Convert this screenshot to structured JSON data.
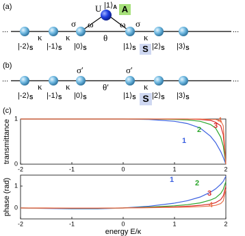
{
  "panel_a": {
    "label": "(a)",
    "ellipsis": [
      "...",
      "..."
    ],
    "sites": [
      {
        "ket": "|-2⟩",
        "sub": "S"
      },
      {
        "ket": "|-1⟩",
        "sub": "S"
      },
      {
        "ket": "|0⟩",
        "sub": "S"
      },
      {
        "ket": "|1⟩",
        "sub": "S"
      },
      {
        "ket": "|2⟩",
        "sub": "S"
      },
      {
        "ket": "|3⟩",
        "sub": "S"
      }
    ],
    "couplings": [
      "κ",
      "κ",
      "κ"
    ],
    "sigma": [
      "σ",
      "σ"
    ],
    "omega": [
      "ω",
      "ω"
    ],
    "theta": "θ",
    "U": "U",
    "ancilla": {
      "ket": "|1⟩",
      "sub": "A"
    },
    "box_a": "A",
    "box_s": "S"
  },
  "panel_b": {
    "label": "(b)",
    "ellipsis": [
      "...",
      "..."
    ],
    "sites": [
      {
        "ket": "|-2⟩",
        "sub": "S"
      },
      {
        "ket": "|-1⟩",
        "sub": "S"
      },
      {
        "ket": "|0⟩",
        "sub": "S"
      },
      {
        "ket": "|1⟩",
        "sub": "S"
      },
      {
        "ket": "|2⟩",
        "sub": "S"
      },
      {
        "ket": "|3⟩",
        "sub": "S"
      }
    ],
    "couplings": [
      "κ",
      "κ",
      "κ"
    ],
    "sigma": [
      "σ′",
      "σ′"
    ],
    "theta": "θ′",
    "box_s": "S"
  },
  "panel_c": {
    "label": "(c)"
  },
  "chart_data": [
    {
      "type": "line",
      "y_label": "transmittance",
      "x": [
        -2,
        -1.5,
        -1,
        -0.5,
        0,
        0.5,
        1,
        1.25,
        1.5,
        1.7,
        1.8,
        1.9,
        1.95,
        2
      ],
      "xlim": [
        -2,
        2
      ],
      "ylim": [
        0,
        1
      ],
      "xticks": [
        -2,
        -1,
        0,
        1,
        2
      ],
      "yticks": [
        0,
        1
      ],
      "series": [
        {
          "name": "1",
          "color": "#3a5fe0",
          "values": [
            1,
            1,
            1,
            1,
            1,
            0.99,
            0.95,
            0.9,
            0.8,
            0.62,
            0.48,
            0.28,
            0.15,
            0
          ]
        },
        {
          "name": "2",
          "color": "#2aa52a",
          "values": [
            1,
            1,
            1,
            1,
            1,
            1,
            0.99,
            0.98,
            0.95,
            0.88,
            0.8,
            0.6,
            0.4,
            0
          ]
        },
        {
          "name": "3",
          "color": "#d82a2a",
          "values": [
            1,
            1,
            1,
            1,
            1,
            1,
            1,
            1,
            0.99,
            0.97,
            0.93,
            0.85,
            0.65,
            0
          ]
        },
        {
          "name": "4",
          "color": "#e8704a",
          "values": [
            1,
            1,
            1,
            1,
            1,
            1,
            1,
            1,
            1,
            0.99,
            0.99,
            0.96,
            0.85,
            0
          ]
        }
      ]
    },
    {
      "type": "line",
      "y_label": "phase (rad)",
      "x_label": "energy E/κ",
      "x": [
        -2,
        -1.5,
        -1,
        -0.5,
        0,
        0.5,
        1,
        1.25,
        1.5,
        1.7,
        1.8,
        1.9,
        1.95,
        2
      ],
      "xlim": [
        -2,
        2
      ],
      "ylim": [
        -0.5,
        1.5
      ],
      "xticks": [
        -2,
        -1,
        0,
        1,
        2
      ],
      "yticks": [
        0,
        1
      ],
      "series": [
        {
          "name": "1",
          "color": "#3a5fe0",
          "values": [
            0,
            -0.02,
            -0.04,
            -0.04,
            0,
            0.08,
            0.22,
            0.33,
            0.5,
            0.72,
            0.87,
            1.08,
            1.22,
            1.45
          ]
        },
        {
          "name": "2",
          "color": "#2aa52a",
          "values": [
            0,
            -0.01,
            -0.02,
            -0.02,
            0,
            0.04,
            0.1,
            0.15,
            0.23,
            0.36,
            0.46,
            0.66,
            0.85,
            1.2
          ]
        },
        {
          "name": "3",
          "color": "#d82a2a",
          "values": [
            0,
            -0.01,
            -0.01,
            -0.01,
            0,
            0.02,
            0.05,
            0.08,
            0.12,
            0.18,
            0.24,
            0.38,
            0.55,
            1.0
          ]
        },
        {
          "name": "4",
          "color": "#e8704a",
          "values": [
            0,
            0,
            -0.01,
            -0.01,
            0,
            0.01,
            0.03,
            0.04,
            0.06,
            0.09,
            0.12,
            0.2,
            0.32,
            0.85
          ]
        }
      ]
    }
  ]
}
